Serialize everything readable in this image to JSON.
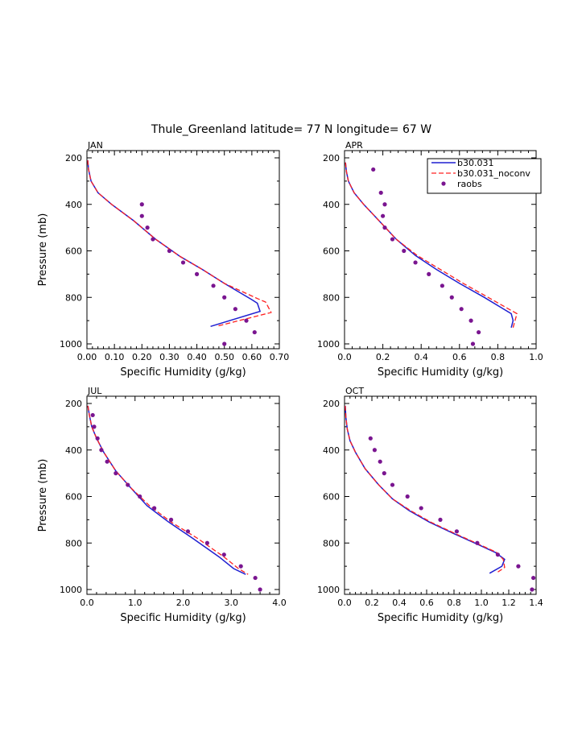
{
  "title": "Thule_Greenland  latitude= 77 N longitude= 67 W",
  "colors": {
    "model": "#1f1fd1",
    "noconv": "#ff2020",
    "raobs": "#7a1590",
    "axis": "#000000"
  },
  "legend": {
    "entries": [
      "b30.031",
      "b30.031_noconv",
      "raobs"
    ],
    "placement": "top-right of APR panel"
  },
  "chart_data": [
    {
      "type": "line",
      "panel": "JAN",
      "xlabel": "Specific Humidity (g/kg)",
      "ylabel": "Pressure (mb)",
      "xlim": [
        0,
        0.7
      ],
      "ylim": [
        1000,
        200
      ],
      "xticks": [
        "0.00",
        "0.10",
        "0.20",
        "0.30",
        "0.40",
        "0.50",
        "0.60",
        "0.70"
      ],
      "yticks": [
        "200",
        "400",
        "600",
        "800",
        "1000"
      ],
      "series": [
        {
          "name": "b30.031",
          "x": [
            0.003,
            0.006,
            0.015,
            0.04,
            0.09,
            0.17,
            0.25,
            0.34,
            0.42,
            0.5,
            0.6,
            0.62,
            0.63,
            0.45
          ],
          "y": [
            210,
            250,
            300,
            350,
            400,
            470,
            550,
            625,
            680,
            740,
            810,
            825,
            860,
            925
          ]
        },
        {
          "name": "b30.031_noconv",
          "x": [
            0.003,
            0.006,
            0.015,
            0.04,
            0.09,
            0.17,
            0.25,
            0.34,
            0.42,
            0.5,
            0.62,
            0.65,
            0.67,
            0.47
          ],
          "y": [
            210,
            250,
            300,
            350,
            400,
            470,
            550,
            625,
            680,
            740,
            805,
            820,
            865,
            925
          ]
        },
        {
          "name": "raobs",
          "x": [
            0.2,
            0.2,
            0.22,
            0.24,
            0.3,
            0.35,
            0.4,
            0.46,
            0.5,
            0.54,
            0.58,
            0.61,
            0.5
          ],
          "y": [
            400,
            450,
            500,
            550,
            600,
            650,
            700,
            750,
            800,
            850,
            900,
            950,
            1000
          ]
        }
      ]
    },
    {
      "type": "line",
      "panel": "APR",
      "xlabel": "Specific Humidity (g/kg)",
      "ylabel": "",
      "xlim": [
        0,
        1.0
      ],
      "ylim": [
        1000,
        200
      ],
      "xticks": [
        "0.0",
        "0.2",
        "0.4",
        "0.6",
        "0.8",
        "1.0"
      ],
      "yticks": [
        "200",
        "400",
        "600",
        "800",
        "1000"
      ],
      "series": [
        {
          "name": "b30.031",
          "x": [
            0.005,
            0.01,
            0.02,
            0.05,
            0.1,
            0.18,
            0.27,
            0.37,
            0.48,
            0.6,
            0.73,
            0.87,
            0.88,
            0.87
          ],
          "y": [
            220,
            260,
            300,
            350,
            400,
            470,
            550,
            620,
            680,
            740,
            800,
            870,
            900,
            930
          ]
        },
        {
          "name": "b30.031_noconv",
          "x": [
            0.005,
            0.01,
            0.02,
            0.05,
            0.1,
            0.18,
            0.27,
            0.38,
            0.5,
            0.62,
            0.75,
            0.9,
            0.89,
            0.88
          ],
          "y": [
            220,
            260,
            300,
            350,
            400,
            470,
            550,
            620,
            680,
            740,
            800,
            870,
            900,
            930
          ]
        },
        {
          "name": "raobs",
          "x": [
            0.15,
            0.19,
            0.21,
            0.2,
            0.21,
            0.25,
            0.31,
            0.37,
            0.44,
            0.51,
            0.56,
            0.61,
            0.66,
            0.7,
            0.67
          ],
          "y": [
            250,
            350,
            400,
            450,
            500,
            550,
            600,
            650,
            700,
            750,
            800,
            850,
            900,
            950,
            1000
          ]
        }
      ]
    },
    {
      "type": "line",
      "panel": "JUL",
      "xlabel": "Specific Humidity (g/kg)",
      "ylabel": "Pressure (mb)",
      "xlim": [
        0,
        4.0
      ],
      "ylim": [
        1000,
        200
      ],
      "xticks": [
        "0.0",
        "1.0",
        "2.0",
        "3.0",
        "4.0"
      ],
      "yticks": [
        "200",
        "400",
        "600",
        "800",
        "1000"
      ],
      "series": [
        {
          "name": "b30.031",
          "x": [
            0.02,
            0.05,
            0.1,
            0.2,
            0.35,
            0.6,
            0.9,
            1.25,
            1.7,
            2.2,
            2.75,
            3.05,
            3.3
          ],
          "y": [
            210,
            250,
            300,
            350,
            410,
            490,
            560,
            640,
            710,
            780,
            860,
            910,
            935
          ]
        },
        {
          "name": "b30.031_noconv",
          "x": [
            0.02,
            0.05,
            0.1,
            0.2,
            0.35,
            0.6,
            0.9,
            1.3,
            1.75,
            2.3,
            2.85,
            3.15,
            3.35
          ],
          "y": [
            210,
            250,
            300,
            350,
            410,
            490,
            560,
            640,
            710,
            780,
            860,
            910,
            935
          ]
        },
        {
          "name": "raobs",
          "x": [
            0.12,
            0.15,
            0.22,
            0.3,
            0.42,
            0.6,
            0.85,
            1.1,
            1.4,
            1.75,
            2.1,
            2.5,
            2.85,
            3.2,
            3.5,
            3.6
          ],
          "y": [
            250,
            300,
            350,
            400,
            450,
            500,
            550,
            600,
            650,
            700,
            750,
            800,
            850,
            900,
            950,
            1000
          ]
        }
      ]
    },
    {
      "type": "line",
      "panel": "OCT",
      "xlabel": "Specific Humidity (g/kg)",
      "ylabel": "",
      "xlim": [
        0,
        1.4
      ],
      "ylim": [
        1000,
        200
      ],
      "xticks": [
        "0.0",
        "0.2",
        "0.4",
        "0.6",
        "0.8",
        "1.0",
        "1.2",
        "1.4"
      ],
      "yticks": [
        "200",
        "400",
        "600",
        "800",
        "1000"
      ],
      "series": [
        {
          "name": "b30.031",
          "x": [
            0.005,
            0.01,
            0.02,
            0.04,
            0.08,
            0.15,
            0.25,
            0.35,
            0.47,
            0.62,
            0.8,
            0.97,
            1.1,
            1.17,
            1.15,
            1.06
          ],
          "y": [
            210,
            260,
            310,
            360,
            410,
            480,
            550,
            610,
            660,
            710,
            760,
            805,
            840,
            870,
            900,
            930
          ]
        },
        {
          "name": "b30.031_noconv",
          "x": [
            0.005,
            0.01,
            0.02,
            0.04,
            0.08,
            0.15,
            0.25,
            0.35,
            0.48,
            0.63,
            0.81,
            0.98,
            1.11,
            1.16,
            1.17,
            1.12
          ],
          "y": [
            210,
            260,
            310,
            360,
            410,
            480,
            550,
            610,
            660,
            710,
            760,
            805,
            840,
            870,
            905,
            925
          ]
        },
        {
          "name": "raobs",
          "x": [
            0.19,
            0.22,
            0.26,
            0.29,
            0.35,
            0.46,
            0.56,
            0.7,
            0.82,
            0.97,
            1.12,
            1.27,
            1.38,
            1.37
          ],
          "y": [
            350,
            400,
            450,
            500,
            550,
            600,
            650,
            700,
            750,
            800,
            850,
            900,
            950,
            1000
          ]
        }
      ]
    }
  ]
}
